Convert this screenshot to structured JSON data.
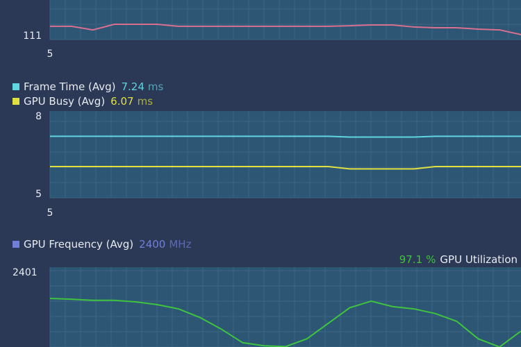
{
  "panels": [
    {
      "ylim": [
        111,
        165
      ],
      "yticks": [
        111
      ],
      "xticks": [
        5
      ],
      "series": [
        {
          "color": "#d9708f",
          "values": [
            117.8,
            117.8,
            115.3,
            119.2,
            119.2,
            119.2,
            117.8,
            117.8,
            117.8,
            117.8,
            117.8,
            117.8,
            117.8,
            117.8,
            118.2,
            118.7,
            118.7,
            117.3,
            116.8,
            116.8,
            115.8,
            115.3,
            112
          ]
        }
      ]
    },
    {
      "ylim": [
        5,
        8
      ],
      "yticks": [
        8,
        5
      ],
      "xticks": [
        5
      ],
      "series": [
        {
          "name": "Frame Time (Avg)",
          "value": 7.24,
          "unit": "ms",
          "color": "#5fd6e0",
          "values": [
            7.24,
            7.24,
            7.24,
            7.24,
            7.24,
            7.24,
            7.24,
            7.24,
            7.24,
            7.24,
            7.24,
            7.24,
            7.24,
            7.24,
            7.21,
            7.21,
            7.21,
            7.21,
            7.24,
            7.24,
            7.24,
            7.24,
            7.24
          ]
        },
        {
          "name": "GPU Busy (Avg)",
          "value": 6.07,
          "unit": "ms",
          "color": "#e0e040",
          "values": [
            6.07,
            6.07,
            6.07,
            6.07,
            6.07,
            6.07,
            6.07,
            6.07,
            6.07,
            6.07,
            6.07,
            6.07,
            6.07,
            6.07,
            5.98,
            5.98,
            5.98,
            5.98,
            6.07,
            6.07,
            6.07,
            6.07,
            6.07
          ]
        }
      ]
    },
    {
      "ylim": [
        2399,
        2401
      ],
      "yticks": [
        2401
      ],
      "series": [
        {
          "name": "GPU Frequency (Avg)",
          "value": 2400,
          "unit": "MHz",
          "color": "#7080d8",
          "line_color": "#3ec43e",
          "values": [
            2400.34,
            2400.32,
            2400.29,
            2400.29,
            2400.25,
            2400.18,
            2400.07,
            2399.85,
            2399.55,
            2399.2,
            2399.12,
            2399.1,
            2399.3,
            2399.7,
            2400.1,
            2400.27,
            2400.13,
            2400.07,
            2399.95,
            2399.75,
            2399.3,
            2399.09,
            2399.5
          ]
        }
      ],
      "utilization": {
        "value": 97.1,
        "unit": "%",
        "label": "GPU Utilization",
        "color": "#3ec43e"
      }
    }
  ]
}
